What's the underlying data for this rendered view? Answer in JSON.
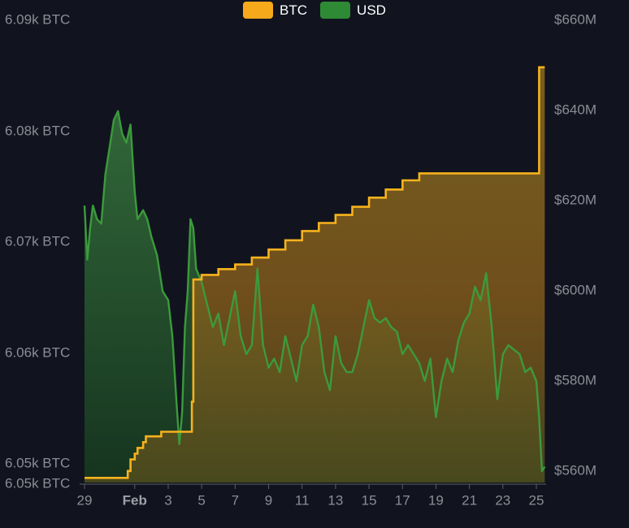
{
  "colors": {
    "background": "#11141f",
    "btc_line": "#f7b21d",
    "usd_line": "#3c9a3c",
    "axis_text": "#8b8d95",
    "month_text": "#9da0a7"
  },
  "legend": [
    {
      "label": "BTC",
      "color": "#f7a91c"
    },
    {
      "label": "USD",
      "color": "#2f8a35"
    }
  ],
  "chart_data": {
    "type": "area",
    "legend_position": "top-center",
    "grid": false,
    "x_axis": {
      "type": "date",
      "range": [
        "2024-01-29",
        "2024-02-25"
      ],
      "tick_labels": [
        {
          "date": "2024-01-29",
          "label": "29"
        },
        {
          "date": "2024-02-01",
          "label": "Feb"
        },
        {
          "date": "2024-02-03",
          "label": "3"
        },
        {
          "date": "2024-02-05",
          "label": "5"
        },
        {
          "date": "2024-02-07",
          "label": "7"
        },
        {
          "date": "2024-02-09",
          "label": "9"
        },
        {
          "date": "2024-02-11",
          "label": "11"
        },
        {
          "date": "2024-02-13",
          "label": "13"
        },
        {
          "date": "2024-02-15",
          "label": "15"
        },
        {
          "date": "2024-02-17",
          "label": "17"
        },
        {
          "date": "2024-02-19",
          "label": "19"
        },
        {
          "date": "2024-02-21",
          "label": "21"
        },
        {
          "date": "2024-02-23",
          "label": "23"
        },
        {
          "date": "2024-02-25",
          "label": "25"
        }
      ]
    },
    "y_left": {
      "unit": "BTC",
      "range": [
        6050,
        6090
      ],
      "tick_labels": [
        "6.09k BTC",
        "6.08k BTC",
        "6.07k BTC",
        "6.06k BTC",
        "6.05k BTC",
        "6.05k BTC"
      ]
    },
    "y_right": {
      "unit": "USD",
      "range": [
        560000000,
        660000000
      ],
      "tick_labels": [
        "$660M",
        "$640M",
        "$620M",
        "$600M",
        "$580M",
        "$560M"
      ]
    },
    "series": [
      {
        "name": "BTC",
        "axis": "left",
        "step": true,
        "points": [
          [
            "2024-01-29T00:00",
            6050.4
          ],
          [
            "2024-01-30T00:00",
            6050.4
          ],
          [
            "2024-01-31T00:00",
            6050.4
          ],
          [
            "2024-01-31T12:00",
            6050.4
          ],
          [
            "2024-01-31T14:00",
            6051.0
          ],
          [
            "2024-01-31T18:00",
            6052.0
          ],
          [
            "2024-02-01T00:00",
            6052.5
          ],
          [
            "2024-02-01T04:00",
            6053.0
          ],
          [
            "2024-02-01T12:00",
            6053.5
          ],
          [
            "2024-02-01T16:00",
            6054.0
          ],
          [
            "2024-02-02T00:00",
            6054.0
          ],
          [
            "2024-02-02T14:00",
            6054.4
          ],
          [
            "2024-02-03T08:00",
            6054.4
          ],
          [
            "2024-02-03T10:00",
            6054.4
          ],
          [
            "2024-02-04T08:00",
            6054.4
          ],
          [
            "2024-02-04T10:00",
            6057.0
          ],
          [
            "2024-02-04T12:00",
            6067.6
          ],
          [
            "2024-02-05T00:00",
            6068.0
          ],
          [
            "2024-02-06T00:00",
            6068.5
          ],
          [
            "2024-02-07T00:00",
            6068.9
          ],
          [
            "2024-02-08T00:00",
            6069.5
          ],
          [
            "2024-02-09T00:00",
            6070.2
          ],
          [
            "2024-02-10T00:00",
            6071.0
          ],
          [
            "2024-02-11T00:00",
            6071.8
          ],
          [
            "2024-02-12T00:00",
            6072.5
          ],
          [
            "2024-02-13T00:00",
            6073.2
          ],
          [
            "2024-02-14T00:00",
            6073.9
          ],
          [
            "2024-02-15T00:00",
            6074.7
          ],
          [
            "2024-02-16T00:00",
            6075.4
          ],
          [
            "2024-02-17T00:00",
            6076.2
          ],
          [
            "2024-02-18T00:00",
            6076.8
          ],
          [
            "2024-02-19T00:00",
            6076.8
          ],
          [
            "2024-02-20T00:00",
            6076.8
          ],
          [
            "2024-02-21T00:00",
            6076.8
          ],
          [
            "2024-02-22T00:00",
            6076.8
          ],
          [
            "2024-02-23T00:00",
            6076.8
          ],
          [
            "2024-02-24T00:00",
            6076.8
          ],
          [
            "2024-02-25T00:00",
            6076.8
          ],
          [
            "2024-02-25T04:00",
            6086.0
          ],
          [
            "2024-02-25T12:00",
            6086.0
          ]
        ]
      },
      {
        "name": "USD",
        "axis": "right",
        "step": false,
        "points": [
          [
            "2024-01-29T00:00",
            619000000
          ],
          [
            "2024-01-29T04:00",
            607000000
          ],
          [
            "2024-01-29T08:00",
            614000000
          ],
          [
            "2024-01-29T12:00",
            619000000
          ],
          [
            "2024-01-29T18:00",
            616000000
          ],
          [
            "2024-01-30T00:00",
            615000000
          ],
          [
            "2024-01-30T06:00",
            626000000
          ],
          [
            "2024-01-30T12:00",
            632000000
          ],
          [
            "2024-01-30T18:00",
            638000000
          ],
          [
            "2024-01-31T00:00",
            640000000
          ],
          [
            "2024-01-31T06:00",
            635000000
          ],
          [
            "2024-01-31T12:00",
            633000000
          ],
          [
            "2024-01-31T18:00",
            637000000
          ],
          [
            "2024-02-01T00:00",
            622000000
          ],
          [
            "2024-02-01T04:00",
            616000000
          ],
          [
            "2024-02-01T12:00",
            618000000
          ],
          [
            "2024-02-01T18:00",
            616000000
          ],
          [
            "2024-02-02T00:00",
            612000000
          ],
          [
            "2024-02-02T08:00",
            608000000
          ],
          [
            "2024-02-02T16:00",
            600000000
          ],
          [
            "2024-02-03T00:00",
            598000000
          ],
          [
            "2024-02-03T06:00",
            590000000
          ],
          [
            "2024-02-03T12:00",
            575000000
          ],
          [
            "2024-02-03T16:00",
            566000000
          ],
          [
            "2024-02-03T20:00",
            573000000
          ],
          [
            "2024-02-04T00:00",
            592000000
          ],
          [
            "2024-02-04T04:00",
            600000000
          ],
          [
            "2024-02-04T08:00",
            616000000
          ],
          [
            "2024-02-04T12:00",
            614000000
          ],
          [
            "2024-02-04T16:00",
            605000000
          ],
          [
            "2024-02-05T00:00",
            602000000
          ],
          [
            "2024-02-05T08:00",
            597000000
          ],
          [
            "2024-02-05T16:00",
            592000000
          ],
          [
            "2024-02-06T00:00",
            595000000
          ],
          [
            "2024-02-06T08:00",
            588000000
          ],
          [
            "2024-02-06T16:00",
            594000000
          ],
          [
            "2024-02-07T00:00",
            600000000
          ],
          [
            "2024-02-07T08:00",
            590000000
          ],
          [
            "2024-02-07T16:00",
            586000000
          ],
          [
            "2024-02-08T00:00",
            588000000
          ],
          [
            "2024-02-08T08:00",
            605000000
          ],
          [
            "2024-02-08T16:00",
            588000000
          ],
          [
            "2024-02-09T00:00",
            583000000
          ],
          [
            "2024-02-09T08:00",
            585000000
          ],
          [
            "2024-02-09T16:00",
            582000000
          ],
          [
            "2024-02-10T00:00",
            590000000
          ],
          [
            "2024-02-10T08:00",
            585000000
          ],
          [
            "2024-02-10T16:00",
            580000000
          ],
          [
            "2024-02-11T00:00",
            588000000
          ],
          [
            "2024-02-11T08:00",
            590000000
          ],
          [
            "2024-02-11T16:00",
            597000000
          ],
          [
            "2024-02-12T00:00",
            592000000
          ],
          [
            "2024-02-12T08:00",
            582000000
          ],
          [
            "2024-02-12T16:00",
            578000000
          ],
          [
            "2024-02-13T00:00",
            590000000
          ],
          [
            "2024-02-13T08:00",
            584000000
          ],
          [
            "2024-02-13T16:00",
            582000000
          ],
          [
            "2024-02-14T00:00",
            582000000
          ],
          [
            "2024-02-14T08:00",
            586000000
          ],
          [
            "2024-02-14T16:00",
            592000000
          ],
          [
            "2024-02-15T00:00",
            598000000
          ],
          [
            "2024-02-15T08:00",
            594000000
          ],
          [
            "2024-02-15T16:00",
            593000000
          ],
          [
            "2024-02-16T00:00",
            594000000
          ],
          [
            "2024-02-16T08:00",
            592000000
          ],
          [
            "2024-02-16T16:00",
            591000000
          ],
          [
            "2024-02-17T00:00",
            586000000
          ],
          [
            "2024-02-17T08:00",
            588000000
          ],
          [
            "2024-02-17T16:00",
            586000000
          ],
          [
            "2024-02-18T00:00",
            584000000
          ],
          [
            "2024-02-18T08:00",
            580000000
          ],
          [
            "2024-02-18T16:00",
            585000000
          ],
          [
            "2024-02-19T00:00",
            572000000
          ],
          [
            "2024-02-19T08:00",
            580000000
          ],
          [
            "2024-02-19T16:00",
            585000000
          ],
          [
            "2024-02-20T00:00",
            582000000
          ],
          [
            "2024-02-20T08:00",
            589000000
          ],
          [
            "2024-02-20T16:00",
            593000000
          ],
          [
            "2024-02-21T00:00",
            595000000
          ],
          [
            "2024-02-21T08:00",
            601000000
          ],
          [
            "2024-02-21T16:00",
            598000000
          ],
          [
            "2024-02-22T00:00",
            604000000
          ],
          [
            "2024-02-22T08:00",
            592000000
          ],
          [
            "2024-02-22T16:00",
            576000000
          ],
          [
            "2024-02-23T00:00",
            586000000
          ],
          [
            "2024-02-23T08:00",
            588000000
          ],
          [
            "2024-02-23T16:00",
            587000000
          ],
          [
            "2024-02-24T00:00",
            586000000
          ],
          [
            "2024-02-24T08:00",
            582000000
          ],
          [
            "2024-02-24T16:00",
            583000000
          ],
          [
            "2024-02-25T00:00",
            580000000
          ],
          [
            "2024-02-25T04:00",
            572000000
          ],
          [
            "2024-02-25T08:00",
            560000000
          ],
          [
            "2024-02-25T12:00",
            561000000
          ]
        ]
      }
    ]
  }
}
